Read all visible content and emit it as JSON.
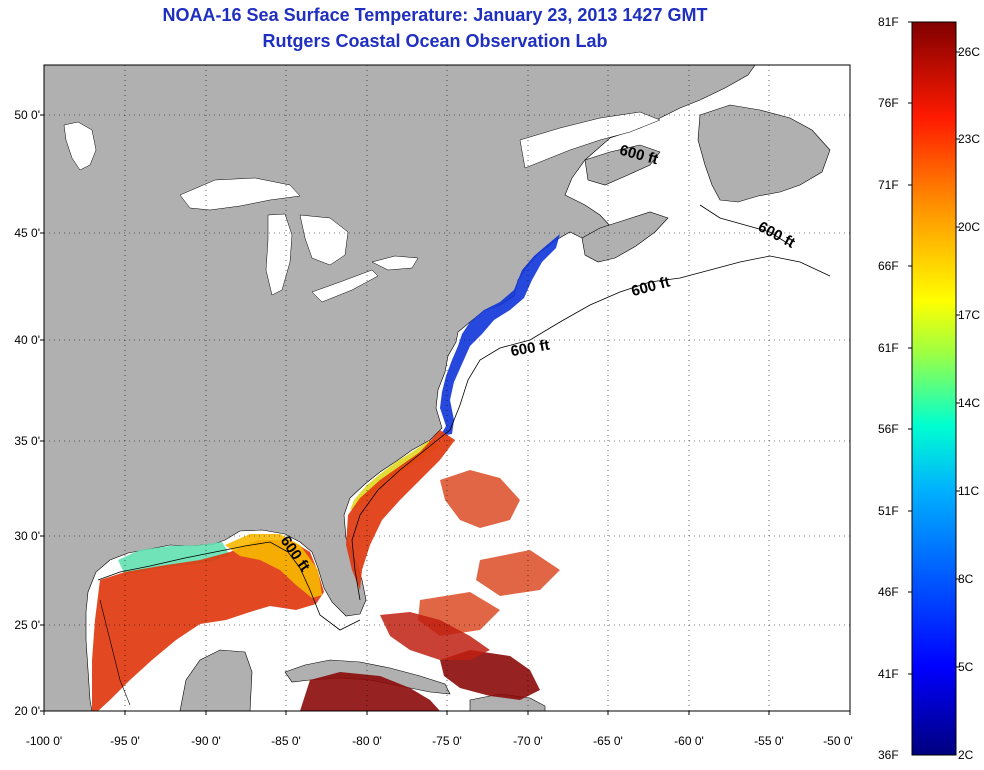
{
  "title": {
    "line1": "NOAA-16 Sea Surface Temperature:  January 23, 2013 1427 GMT",
    "line2": "Rutgers Coastal Ocean Observation Lab"
  },
  "axes": {
    "lat_ticks": [
      "50 0'",
      "45 0'",
      "40 0'",
      "35 0'",
      "30 0'",
      "25 0'",
      "20 0'"
    ],
    "lon_ticks": [
      "-100 0'",
      "-95 0'",
      "-90 0'",
      "-85 0'",
      "-80 0'",
      "-75 0'",
      "-70 0'",
      "-65 0'",
      "-60 0'",
      "-55 0'",
      "-50 0'"
    ]
  },
  "isobath_labels": [
    "600 ft",
    "600 ft",
    "600 ft",
    "600 ft",
    "600 ft"
  ],
  "colorbar": {
    "fahrenheit": [
      "81F",
      "76F",
      "71F",
      "66F",
      "61F",
      "56F",
      "51F",
      "46F",
      "41F",
      "36F"
    ],
    "celsius": [
      "26C",
      "23C",
      "20C",
      "17C",
      "14C",
      "11C",
      "8C",
      "5C",
      "2C"
    ]
  },
  "colors": {
    "land": "#b0b0b0",
    "ocean": "#ffffff",
    "title": "#1f2fbf",
    "warm": "#e03a10",
    "hot": "#8b0a0a",
    "cold": "#1030c0"
  }
}
